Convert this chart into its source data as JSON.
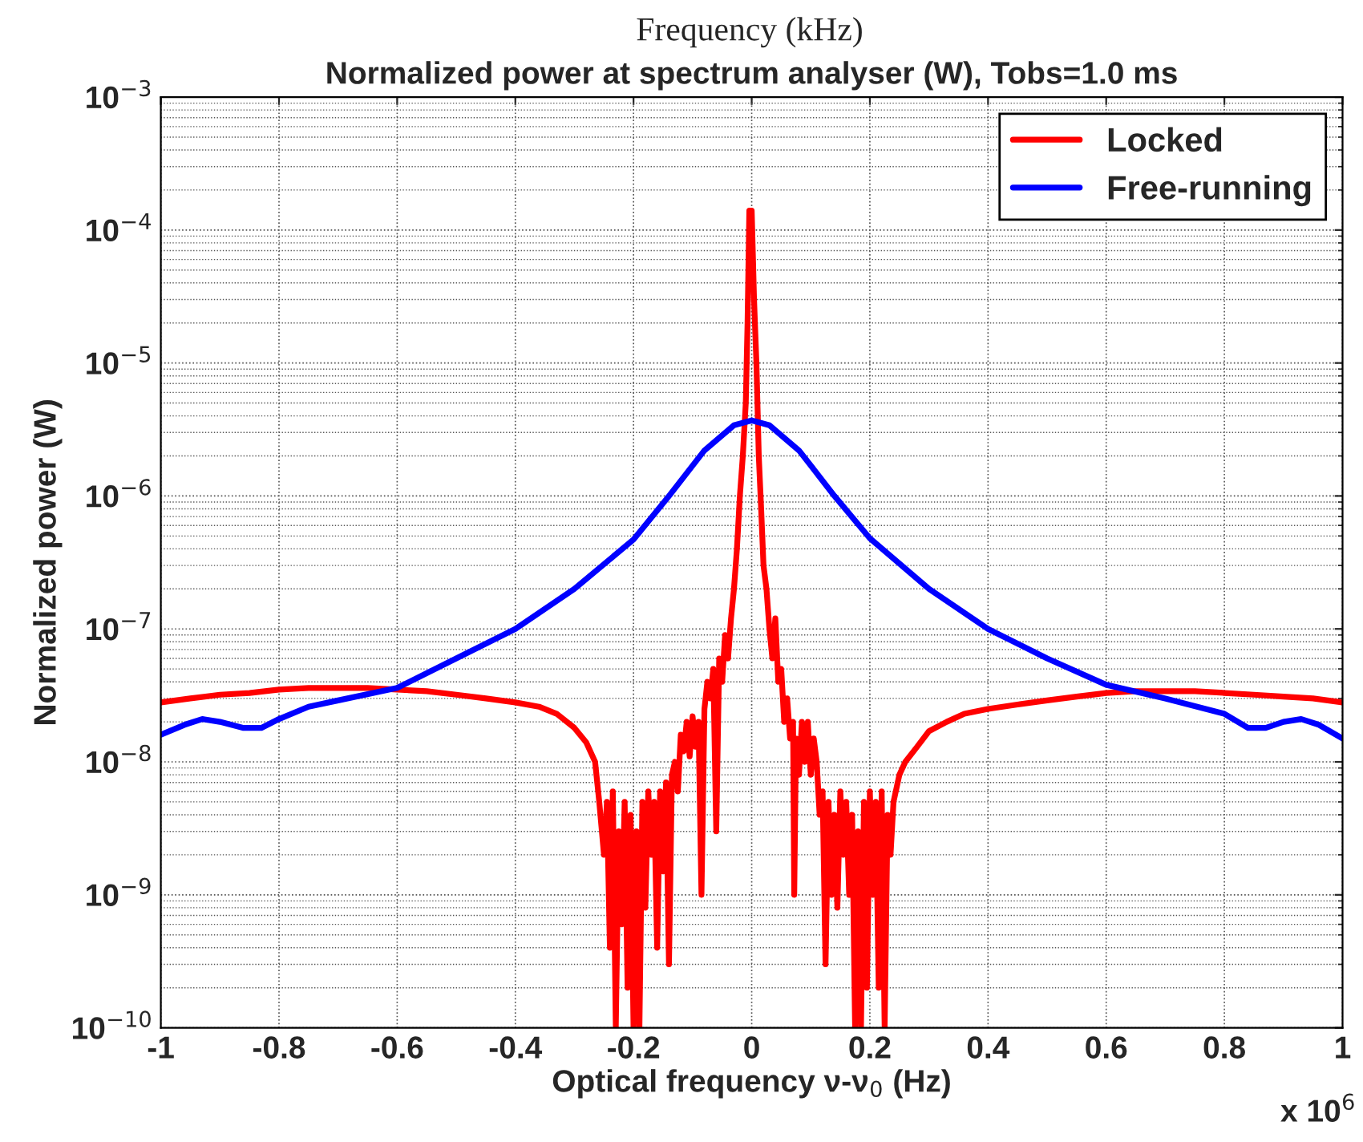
{
  "chart_data": {
    "type": "line",
    "title": "Normalized power at spectrum analyser (W), Tobs=1.0 ms",
    "xlabel": "Optical frequency ν-ν$_{0}$ (Hz)",
    "ylabel": "Normalized power (W)",
    "annotations": [
      "Frequency (kHz)",
      "x 10$^{6}$"
    ],
    "log": "y",
    "grid": true,
    "legend": "top right",
    "line_style": "solid",
    "marker": "none",
    "xlim": [
      -1,
      1
    ],
    "xticks": [
      -1,
      -0.8,
      -0.6,
      -0.4,
      -0.2,
      0,
      0.2,
      0.4,
      0.6,
      0.8,
      1
    ],
    "ylim": [
      1e-10,
      0.001
    ],
    "yticks": [
      {
        "value": 1e-10,
        "label": "10$^{−10}$"
      },
      {
        "value": 1e-09,
        "label": "10$^{−9}$"
      },
      {
        "value": 1e-08,
        "label": "10$^{−8}$"
      },
      {
        "value": 1e-07,
        "label": "10$^{−7}$"
      },
      {
        "value": 1e-06,
        "label": "10$^{−6}$"
      },
      {
        "value": 1e-05,
        "label": "10$^{−5}$"
      },
      {
        "value": 0.0001,
        "label": "10$^{−4}$"
      },
      {
        "value": 0.001,
        "label": "10$^{−3}$"
      }
    ],
    "series": [
      {
        "name": "Locked",
        "color": "#ff0000",
        "x": [
          -1.0,
          -0.95,
          -0.9,
          -0.85,
          -0.8,
          -0.75,
          -0.7,
          -0.65,
          -0.6,
          -0.55,
          -0.5,
          -0.45,
          -0.4,
          -0.36,
          -0.33,
          -0.3,
          -0.28,
          -0.265,
          -0.258,
          -0.25,
          -0.245,
          -0.24,
          -0.235,
          -0.23,
          -0.225,
          -0.22,
          -0.215,
          -0.21,
          -0.205,
          -0.2,
          -0.195,
          -0.19,
          -0.185,
          -0.18,
          -0.175,
          -0.17,
          -0.165,
          -0.16,
          -0.155,
          -0.15,
          -0.145,
          -0.14,
          -0.135,
          -0.13,
          -0.125,
          -0.12,
          -0.115,
          -0.11,
          -0.105,
          -0.1,
          -0.095,
          -0.09,
          -0.085,
          -0.08,
          -0.075,
          -0.07,
          -0.065,
          -0.06,
          -0.055,
          -0.05,
          -0.045,
          -0.04,
          -0.035,
          -0.03,
          -0.025,
          -0.02,
          -0.015,
          -0.01,
          -0.007,
          -0.004,
          0.0,
          0.004,
          0.008,
          0.012,
          0.016,
          0.02,
          0.025,
          0.03,
          0.035,
          0.04,
          0.045,
          0.05,
          0.055,
          0.06,
          0.065,
          0.07,
          0.072,
          0.075,
          0.08,
          0.085,
          0.09,
          0.095,
          0.1,
          0.105,
          0.11,
          0.115,
          0.12,
          0.125,
          0.13,
          0.135,
          0.14,
          0.145,
          0.15,
          0.155,
          0.16,
          0.165,
          0.17,
          0.175,
          0.18,
          0.185,
          0.19,
          0.195,
          0.2,
          0.205,
          0.21,
          0.215,
          0.22,
          0.225,
          0.23,
          0.235,
          0.24,
          0.25,
          0.26,
          0.28,
          0.3,
          0.33,
          0.36,
          0.4,
          0.45,
          0.5,
          0.55,
          0.6,
          0.65,
          0.7,
          0.75,
          0.8,
          0.85,
          0.9,
          0.95,
          1.0
        ],
        "values": [
          2.8e-08,
          3e-08,
          3.2e-08,
          3.3e-08,
          3.5e-08,
          3.6e-08,
          3.6e-08,
          3.6e-08,
          3.5e-08,
          3.4e-08,
          3.2e-08,
          3e-08,
          2.8e-08,
          2.6e-08,
          2.3e-08,
          1.8e-08,
          1.4e-08,
          1e-08,
          5e-09,
          2e-09,
          5e-09,
          4e-10,
          6e-09,
          1e-10,
          3e-09,
          6e-10,
          5e-09,
          2e-10,
          4e-09,
          1e-10,
          3e-09,
          1e-10,
          5e-09,
          8e-10,
          6e-09,
          2e-09,
          5e-09,
          4e-10,
          6e-09,
          1.5e-09,
          7e-09,
          3e-10,
          8e-09,
          1e-08,
          6e-09,
          1.6e-08,
          1.2e-08,
          2e-08,
          1.1e-08,
          2.2e-08,
          1.3e-08,
          2e-08,
          1e-09,
          2.5e-08,
          4e-08,
          3e-08,
          5e-08,
          3e-09,
          6e-08,
          4e-08,
          9e-08,
          6e-08,
          1.2e-07,
          2e-07,
          4e-07,
          1e-06,
          2e-06,
          5e-06,
          2e-05,
          0.00014,
          0.00014,
          3e-05,
          1e-05,
          2e-06,
          8e-07,
          3e-07,
          2e-07,
          1e-07,
          6e-08,
          1.2e-07,
          4e-08,
          5e-08,
          2e-08,
          3e-08,
          1.5e-08,
          2e-08,
          1e-09,
          1.5e-08,
          8e-09,
          2e-08,
          1e-08,
          2e-08,
          8e-09,
          1.5e-08,
          1e-08,
          4e-09,
          6e-09,
          3e-10,
          5e-09,
          1e-09,
          4e-09,
          8e-10,
          6e-09,
          2e-09,
          5e-09,
          1e-09,
          4e-09,
          1e-10,
          3e-09,
          1e-10,
          5e-09,
          2e-10,
          6e-09,
          1e-09,
          5e-09,
          2e-10,
          6e-09,
          1e-10,
          4e-09,
          2e-09,
          5e-09,
          8e-09,
          1e-08,
          1.3e-08,
          1.7e-08,
          2e-08,
          2.3e-08,
          2.5e-08,
          2.7e-08,
          2.9e-08,
          3.1e-08,
          3.3e-08,
          3.4e-08,
          3.4e-08,
          3.4e-08,
          3.3e-08,
          3.2e-08,
          3.1e-08,
          3e-08,
          2.8e-08
        ]
      },
      {
        "name": "Free-running",
        "color": "#0000ff",
        "x": [
          -1.0,
          -0.96,
          -0.93,
          -0.9,
          -0.86,
          -0.83,
          -0.8,
          -0.75,
          -0.7,
          -0.6,
          -0.5,
          -0.4,
          -0.3,
          -0.2,
          -0.14,
          -0.08,
          -0.03,
          0.0,
          0.03,
          0.08,
          0.14,
          0.2,
          0.3,
          0.4,
          0.5,
          0.6,
          0.7,
          0.8,
          0.84,
          0.87,
          0.9,
          0.93,
          0.96,
          1.0
        ],
        "values": [
          1.6e-08,
          1.9e-08,
          2.1e-08,
          2e-08,
          1.8e-08,
          1.8e-08,
          2.1e-08,
          2.6e-08,
          2.9e-08,
          3.6e-08,
          6e-08,
          1e-07,
          2e-07,
          4.7e-07,
          1e-06,
          2.2e-06,
          3.4e-06,
          3.7e-06,
          3.4e-06,
          2.2e-06,
          1e-06,
          4.8e-07,
          2e-07,
          1e-07,
          6e-08,
          3.8e-08,
          3e-08,
          2.3e-08,
          1.8e-08,
          1.8e-08,
          2e-08,
          2.1e-08,
          1.9e-08,
          1.5e-08
        ]
      }
    ]
  }
}
